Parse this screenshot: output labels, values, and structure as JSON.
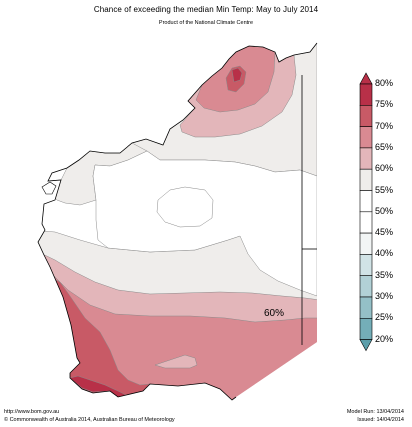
{
  "title": "Chance of exceeding the median Min Temp: May to July 2014",
  "subtitle": "Product of the National Climate Centre",
  "map_label": "60%",
  "legend": {
    "labels": [
      "80%",
      "75%",
      "70%",
      "65%",
      "60%",
      "55%",
      "50%",
      "45%",
      "40%",
      "35%",
      "30%",
      "25%",
      "20%"
    ],
    "colors": [
      "#b83048",
      "#c85a66",
      "#d98a92",
      "#e3b6ba",
      "#efedeb",
      "#ffffff",
      "#ffffff",
      "#f2f5f5",
      "#d1e3e6",
      "#b2d1d6",
      "#94c0c7",
      "#74aeb8",
      "#5c9fab"
    ]
  },
  "footer": {
    "url": "http://www.bom.gov.au",
    "copyright": "©  Commonwealth of Australia 2014, Australian Bureau of Meteorology",
    "model_run": "Model Run: 13/04/2014",
    "issued": "Issued: 14/04/2014"
  },
  "colors": {
    "c80": "#b83048",
    "c75": "#c85a66",
    "c70": "#d98a92",
    "c65": "#e3b6ba",
    "c60": "#efedeb",
    "c55": "#ffffff",
    "outline": "#000000"
  }
}
